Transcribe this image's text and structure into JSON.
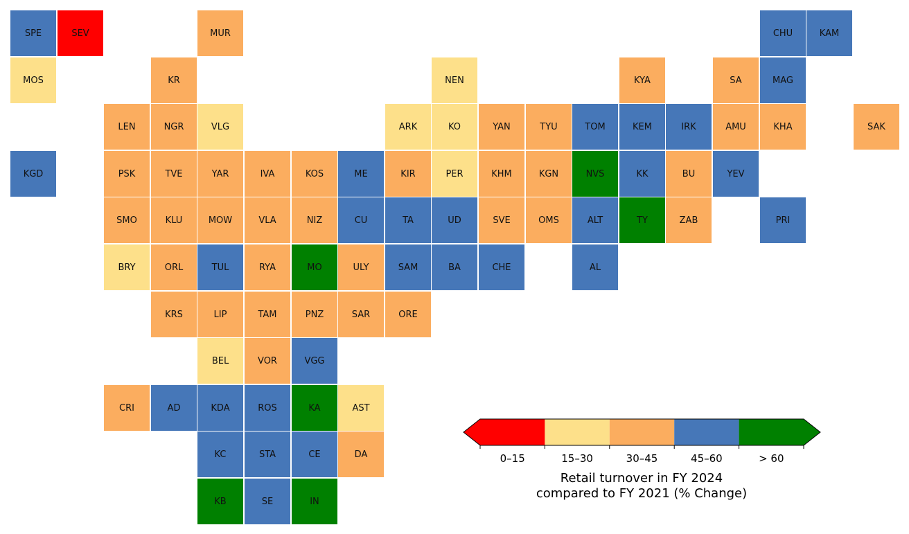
{
  "colors": {
    "c0": "#ff0000",
    "c1": "#fde08a",
    "c2": "#fbad5f",
    "c3": "#4677b8",
    "c4": "#008000"
  },
  "regions": [
    {
      "code": "SPE",
      "row": 0,
      "col": 0,
      "cls": "c3"
    },
    {
      "code": "SEV",
      "row": 0,
      "col": 1,
      "cls": "c0"
    },
    {
      "code": "MUR",
      "row": 0,
      "col": 4,
      "cls": "c2"
    },
    {
      "code": "CHU",
      "row": 0,
      "col": 16,
      "cls": "c3"
    },
    {
      "code": "KAM",
      "row": 0,
      "col": 17,
      "cls": "c3"
    },
    {
      "code": "MOS",
      "row": 1,
      "col": 0,
      "cls": "c1"
    },
    {
      "code": "KR",
      "row": 1,
      "col": 3,
      "cls": "c2"
    },
    {
      "code": "NEN",
      "row": 1,
      "col": 9,
      "cls": "c1"
    },
    {
      "code": "KYA",
      "row": 1,
      "col": 13,
      "cls": "c2"
    },
    {
      "code": "SA",
      "row": 1,
      "col": 15,
      "cls": "c2"
    },
    {
      "code": "MAG",
      "row": 1,
      "col": 16,
      "cls": "c3"
    },
    {
      "code": "LEN",
      "row": 2,
      "col": 2,
      "cls": "c2"
    },
    {
      "code": "NGR",
      "row": 2,
      "col": 3,
      "cls": "c2"
    },
    {
      "code": "VLG",
      "row": 2,
      "col": 4,
      "cls": "c1"
    },
    {
      "code": "ARK",
      "row": 2,
      "col": 8,
      "cls": "c1"
    },
    {
      "code": "KO",
      "row": 2,
      "col": 9,
      "cls": "c1"
    },
    {
      "code": "YAN",
      "row": 2,
      "col": 10,
      "cls": "c2"
    },
    {
      "code": "TYU",
      "row": 2,
      "col": 11,
      "cls": "c2"
    },
    {
      "code": "TOM",
      "row": 2,
      "col": 12,
      "cls": "c3"
    },
    {
      "code": "KEM",
      "row": 2,
      "col": 13,
      "cls": "c3"
    },
    {
      "code": "IRK",
      "row": 2,
      "col": 14,
      "cls": "c3"
    },
    {
      "code": "AMU",
      "row": 2,
      "col": 15,
      "cls": "c2"
    },
    {
      "code": "KHA",
      "row": 2,
      "col": 16,
      "cls": "c2"
    },
    {
      "code": "SAK",
      "row": 2,
      "col": 18,
      "cls": "c2"
    },
    {
      "code": "KGD",
      "row": 3,
      "col": 0,
      "cls": "c3"
    },
    {
      "code": "PSK",
      "row": 3,
      "col": 2,
      "cls": "c2"
    },
    {
      "code": "TVE",
      "row": 3,
      "col": 3,
      "cls": "c2"
    },
    {
      "code": "YAR",
      "row": 3,
      "col": 4,
      "cls": "c2"
    },
    {
      "code": "IVA",
      "row": 3,
      "col": 5,
      "cls": "c2"
    },
    {
      "code": "KOS",
      "row": 3,
      "col": 6,
      "cls": "c2"
    },
    {
      "code": "ME",
      "row": 3,
      "col": 7,
      "cls": "c3"
    },
    {
      "code": "KIR",
      "row": 3,
      "col": 8,
      "cls": "c2"
    },
    {
      "code": "PER",
      "row": 3,
      "col": 9,
      "cls": "c1"
    },
    {
      "code": "KHM",
      "row": 3,
      "col": 10,
      "cls": "c2"
    },
    {
      "code": "KGN",
      "row": 3,
      "col": 11,
      "cls": "c2"
    },
    {
      "code": "NVS",
      "row": 3,
      "col": 12,
      "cls": "c4"
    },
    {
      "code": "KK",
      "row": 3,
      "col": 13,
      "cls": "c3"
    },
    {
      "code": "BU",
      "row": 3,
      "col": 14,
      "cls": "c2"
    },
    {
      "code": "YEV",
      "row": 3,
      "col": 15,
      "cls": "c3"
    },
    {
      "code": "SMO",
      "row": 4,
      "col": 2,
      "cls": "c2"
    },
    {
      "code": "KLU",
      "row": 4,
      "col": 3,
      "cls": "c2"
    },
    {
      "code": "MOW",
      "row": 4,
      "col": 4,
      "cls": "c2"
    },
    {
      "code": "VLA",
      "row": 4,
      "col": 5,
      "cls": "c2"
    },
    {
      "code": "NIZ",
      "row": 4,
      "col": 6,
      "cls": "c2"
    },
    {
      "code": "CU",
      "row": 4,
      "col": 7,
      "cls": "c3"
    },
    {
      "code": "TA",
      "row": 4,
      "col": 8,
      "cls": "c3"
    },
    {
      "code": "UD",
      "row": 4,
      "col": 9,
      "cls": "c3"
    },
    {
      "code": "SVE",
      "row": 4,
      "col": 10,
      "cls": "c2"
    },
    {
      "code": "OMS",
      "row": 4,
      "col": 11,
      "cls": "c2"
    },
    {
      "code": "ALT",
      "row": 4,
      "col": 12,
      "cls": "c3"
    },
    {
      "code": "TY",
      "row": 4,
      "col": 13,
      "cls": "c4"
    },
    {
      "code": "ZAB",
      "row": 4,
      "col": 14,
      "cls": "c2"
    },
    {
      "code": "PRI",
      "row": 4,
      "col": 16,
      "cls": "c3"
    },
    {
      "code": "BRY",
      "row": 5,
      "col": 2,
      "cls": "c1"
    },
    {
      "code": "ORL",
      "row": 5,
      "col": 3,
      "cls": "c2"
    },
    {
      "code": "TUL",
      "row": 5,
      "col": 4,
      "cls": "c3"
    },
    {
      "code": "RYA",
      "row": 5,
      "col": 5,
      "cls": "c2"
    },
    {
      "code": "MO",
      "row": 5,
      "col": 6,
      "cls": "c4"
    },
    {
      "code": "ULY",
      "row": 5,
      "col": 7,
      "cls": "c2"
    },
    {
      "code": "SAM",
      "row": 5,
      "col": 8,
      "cls": "c3"
    },
    {
      "code": "BA",
      "row": 5,
      "col": 9,
      "cls": "c3"
    },
    {
      "code": "CHE",
      "row": 5,
      "col": 10,
      "cls": "c3"
    },
    {
      "code": "AL",
      "row": 5,
      "col": 12,
      "cls": "c3"
    },
    {
      "code": "KRS",
      "row": 6,
      "col": 3,
      "cls": "c2"
    },
    {
      "code": "LIP",
      "row": 6,
      "col": 4,
      "cls": "c2"
    },
    {
      "code": "TAM",
      "row": 6,
      "col": 5,
      "cls": "c2"
    },
    {
      "code": "PNZ",
      "row": 6,
      "col": 6,
      "cls": "c2"
    },
    {
      "code": "SAR",
      "row": 6,
      "col": 7,
      "cls": "c2"
    },
    {
      "code": "ORE",
      "row": 6,
      "col": 8,
      "cls": "c2"
    },
    {
      "code": "BEL",
      "row": 7,
      "col": 4,
      "cls": "c1"
    },
    {
      "code": "VOR",
      "row": 7,
      "col": 5,
      "cls": "c2"
    },
    {
      "code": "VGG",
      "row": 7,
      "col": 6,
      "cls": "c3"
    },
    {
      "code": "CRI",
      "row": 8,
      "col": 2,
      "cls": "c2"
    },
    {
      "code": "AD",
      "row": 8,
      "col": 3,
      "cls": "c3"
    },
    {
      "code": "KDA",
      "row": 8,
      "col": 4,
      "cls": "c3"
    },
    {
      "code": "ROS",
      "row": 8,
      "col": 5,
      "cls": "c3"
    },
    {
      "code": "KA",
      "row": 8,
      "col": 6,
      "cls": "c4"
    },
    {
      "code": "AST",
      "row": 8,
      "col": 7,
      "cls": "c1"
    },
    {
      "code": "KC",
      "row": 9,
      "col": 4,
      "cls": "c3"
    },
    {
      "code": "STA",
      "row": 9,
      "col": 5,
      "cls": "c3"
    },
    {
      "code": "CE",
      "row": 9,
      "col": 6,
      "cls": "c3"
    },
    {
      "code": "DA",
      "row": 9,
      "col": 7,
      "cls": "c2"
    },
    {
      "code": "KB",
      "row": 10,
      "col": 4,
      "cls": "c4"
    },
    {
      "code": "SE",
      "row": 10,
      "col": 5,
      "cls": "c3"
    },
    {
      "code": "IN",
      "row": 10,
      "col": 6,
      "cls": "c4"
    }
  ],
  "legend": {
    "bins": [
      "0–15",
      "15–30",
      "30–45",
      "45–60",
      "> 60"
    ],
    "title_line1": "Retail turnover in FY 2024",
    "title_line2": "compared to FY 2021 (% Change)"
  }
}
